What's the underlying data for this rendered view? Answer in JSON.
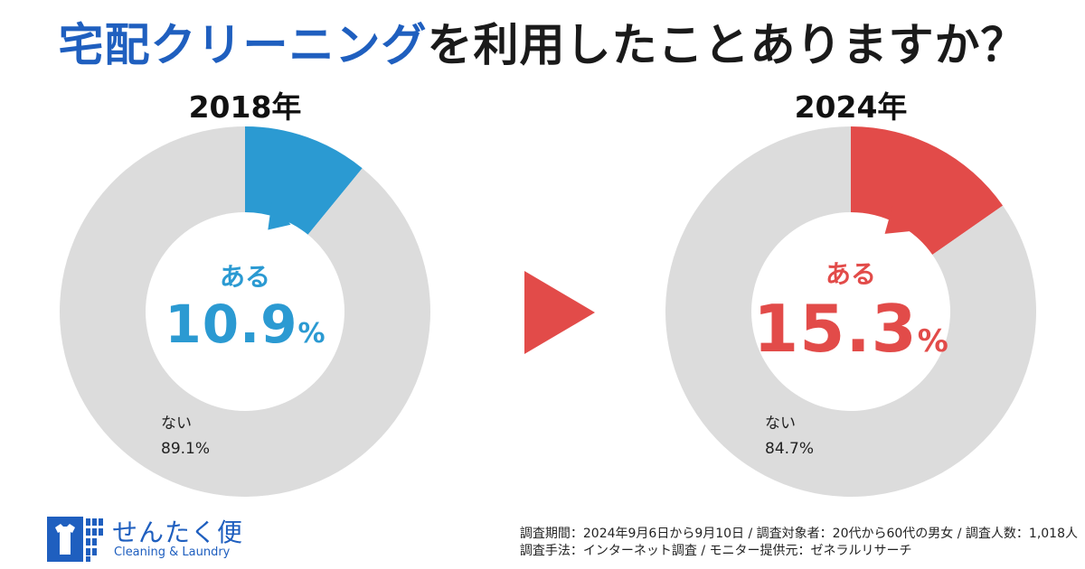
{
  "title": {
    "highlight": "宅配クリーニング",
    "rest": "を利用したことありますか？"
  },
  "chart_data": [
    {
      "type": "pie",
      "title": "2018年",
      "slices": [
        {
          "label": "ある",
          "value": 10.9,
          "color": "#2b9ad2"
        },
        {
          "label": "ない",
          "value": 89.1,
          "color": "#dcdcdc"
        }
      ],
      "center_label": "ある",
      "center_value": "10.9",
      "center_unit": "%",
      "other_label": "ない",
      "other_value": "89.1%"
    },
    {
      "type": "pie",
      "title": "2024年",
      "slices": [
        {
          "label": "ある",
          "value": 15.3,
          "color": "#e24b49"
        },
        {
          "label": "ない",
          "value": 84.7,
          "color": "#dcdcdc"
        }
      ],
      "center_label": "ある",
      "center_value": "15.3",
      "center_unit": "%",
      "other_label": "ない",
      "other_value": "84.7%"
    }
  ],
  "arrow_color": "#e24b49",
  "logo": {
    "name": "せんたく便",
    "sub": "Cleaning & Laundry",
    "icon": "shirt-icon",
    "color": "#1f5fbf"
  },
  "survey": {
    "line1": "調査期間：2024年9月6日から9月10日 / 調査対象者：20代から60代の男女 / 調査人数：1,018人",
    "line2": "調査手法：インターネット調査 / モニター提供元：ゼネラルリサーチ"
  }
}
